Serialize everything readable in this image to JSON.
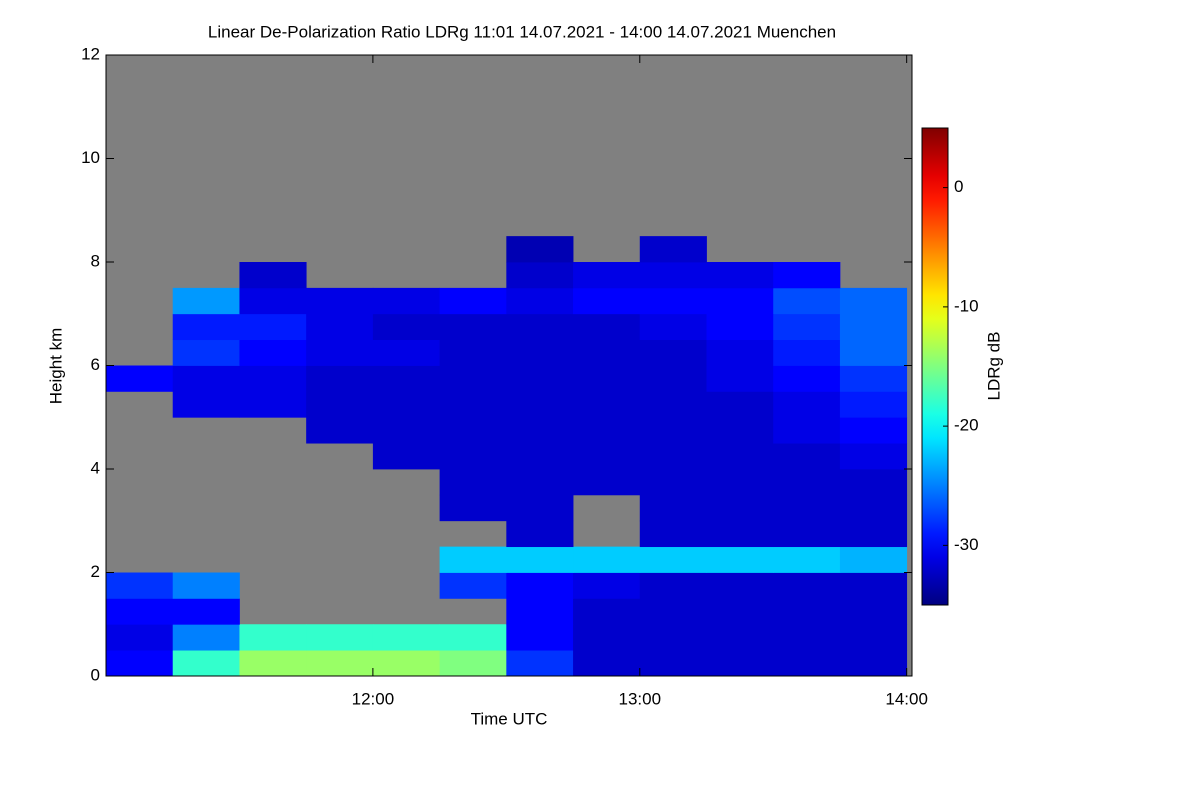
{
  "chart_data": {
    "type": "heatmap",
    "title": "Linear De-Polarization Ratio LDRg   11:01 14.07.2021 - 14:00 14.07.2021 Muenchen",
    "x_label": "Time UTC",
    "y_label": "Height km",
    "colorbar_label": "LDRg dB",
    "colormap": "jet",
    "missing_color": "#808080",
    "x": [
      11,
      11.25,
      11.5,
      11.75,
      12,
      12.25,
      12.5,
      12.75,
      13,
      13.25,
      13.5,
      13.75,
      14
    ],
    "y": [
      0,
      0.5,
      1,
      1.5,
      2,
      2.5,
      3,
      3.5,
      4,
      4.5,
      5,
      5.5,
      6,
      6.5,
      7,
      7.5,
      8,
      8.5,
      9,
      9.5,
      10,
      10.5,
      11,
      11.5,
      12
    ],
    "z": [
      [
        -30,
        -18,
        -14,
        -14,
        -14,
        -15,
        -28,
        -32,
        -32,
        -32,
        -32,
        -32
      ],
      [
        -31,
        -25,
        -18,
        -18,
        -18,
        -18,
        -30,
        -32,
        -32,
        -32,
        -32,
        -32
      ],
      [
        -30,
        -30,
        null,
        null,
        null,
        null,
        -30,
        -32,
        -32,
        -32,
        -32,
        -32
      ],
      [
        -28,
        -25,
        null,
        null,
        null,
        -28,
        -30,
        -31,
        -32,
        -32,
        -32,
        -32
      ],
      [
        null,
        null,
        null,
        null,
        null,
        -22,
        -22,
        -22,
        -22,
        -22,
        -22,
        -23
      ],
      [
        null,
        null,
        null,
        null,
        null,
        null,
        -32,
        null,
        -32,
        -32,
        -32,
        -32
      ],
      [
        null,
        null,
        null,
        null,
        null,
        -32,
        -32,
        null,
        -32,
        -32,
        -32,
        -32
      ],
      [
        null,
        null,
        null,
        null,
        null,
        -32,
        -32,
        -32,
        -32,
        -32,
        -32,
        -32
      ],
      [
        null,
        null,
        null,
        null,
        -32,
        -32,
        -32,
        -32,
        -32,
        -32,
        -32,
        -31
      ],
      [
        null,
        null,
        null,
        -32,
        -32,
        -32,
        -32,
        -32,
        -32,
        -32,
        -31,
        -30
      ],
      [
        null,
        -31,
        -31,
        -32,
        -32,
        -32,
        -32,
        -32,
        -32,
        -32,
        -31,
        -29
      ],
      [
        -30,
        -31,
        -31,
        -32,
        -32,
        -32,
        -32,
        -32,
        -32,
        -31,
        -30,
        -28
      ],
      [
        null,
        -28,
        -30,
        -31,
        -31,
        -32,
        -32,
        -32,
        -32,
        -31,
        -29,
        -26
      ],
      [
        null,
        -29,
        -29,
        -31,
        -32,
        -32,
        -32,
        -32,
        -31,
        -30,
        -28,
        -26
      ],
      [
        null,
        -24,
        -31,
        -31,
        -31,
        -30,
        -31,
        -30,
        -30,
        -30,
        -27,
        -26
      ],
      [
        null,
        null,
        -32,
        null,
        null,
        null,
        -32,
        -31,
        -31,
        -31,
        -30,
        null
      ],
      [
        null,
        null,
        null,
        null,
        null,
        null,
        -33,
        null,
        -32,
        null,
        null,
        null
      ],
      [
        null,
        null,
        null,
        null,
        null,
        null,
        null,
        null,
        null,
        null,
        null,
        null
      ],
      [
        null,
        null,
        null,
        null,
        null,
        null,
        null,
        null,
        null,
        null,
        null,
        null
      ],
      [
        null,
        null,
        null,
        null,
        null,
        null,
        null,
        null,
        null,
        null,
        null,
        null
      ],
      [
        null,
        null,
        null,
        null,
        null,
        null,
        null,
        null,
        null,
        null,
        null,
        null
      ],
      [
        null,
        null,
        null,
        null,
        null,
        null,
        null,
        null,
        null,
        null,
        null,
        null
      ],
      [
        null,
        null,
        null,
        null,
        null,
        null,
        null,
        null,
        null,
        null,
        null,
        null
      ],
      [
        null,
        null,
        null,
        null,
        null,
        null,
        null,
        null,
        null,
        null,
        null,
        null
      ]
    ],
    "xlim": [
      11,
      14.02
    ],
    "xticks": [
      {
        "value": 12,
        "label": "12:00"
      },
      {
        "value": 13,
        "label": "13:00"
      },
      {
        "value": 14,
        "label": "14:00"
      }
    ],
    "ylim": [
      0,
      12
    ],
    "yticks": [
      0,
      2,
      4,
      6,
      8,
      10,
      12
    ],
    "clim": [
      -35,
      5
    ],
    "cticks": [
      0,
      -10,
      -20,
      -30
    ]
  }
}
